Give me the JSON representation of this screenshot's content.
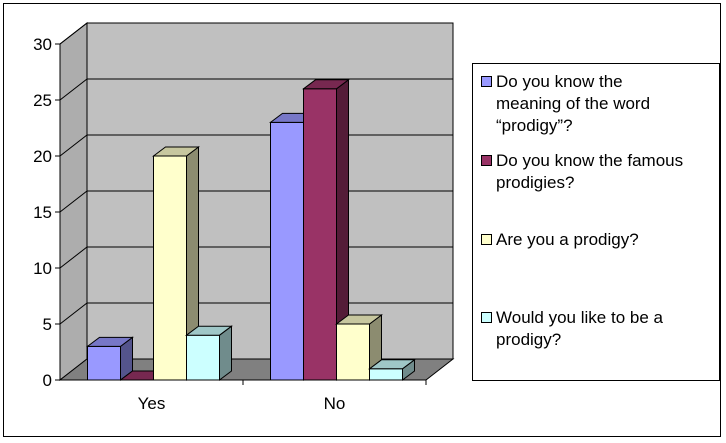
{
  "chart_data": {
    "type": "bar",
    "categories": [
      "Yes",
      "No"
    ],
    "series": [
      {
        "name": "Do you know the meaning of the word “prodigy”?",
        "values": [
          3,
          23
        ],
        "color": "#9999FF"
      },
      {
        "name": "Do you know the famous prodigies?",
        "values": [
          0,
          26
        ],
        "color": "#993366"
      },
      {
        "name": "Are you a prodigy?",
        "values": [
          20,
          5
        ],
        "color": "#FFFFCC"
      },
      {
        "name": "Would you like to be a prodigy?",
        "values": [
          4,
          1
        ],
        "color": "#CCFFFF"
      }
    ],
    "yticks": [
      0,
      5,
      10,
      15,
      20,
      25,
      30
    ],
    "ylim": [
      0,
      30
    ],
    "grid": true,
    "legend_position": "right",
    "wall_color": "#C0C0C0",
    "floor_color": "#808080"
  },
  "legend": {
    "items": [
      {
        "text": "Do you know the\nmeaning of the word\n“prodigy”?"
      },
      {
        "text": "Do you know the famous\nprodigies?"
      },
      {
        "text": "Are you a prodigy?"
      },
      {
        "text": "Would you like to be a\nprodigy?"
      }
    ]
  }
}
